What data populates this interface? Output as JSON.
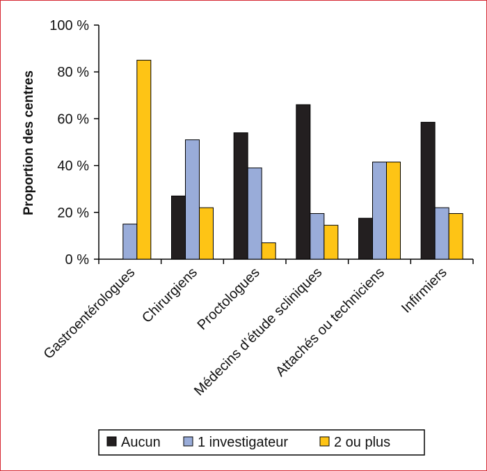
{
  "chart_data": {
    "type": "bar",
    "title": "",
    "xlabel": "",
    "ylabel": "Proportion des centres",
    "ylim": [
      0,
      100
    ],
    "yticks": [
      0,
      20,
      40,
      60,
      80,
      100
    ],
    "ytick_labels": [
      "0 %",
      "20 %",
      "40 %",
      "60 %",
      "80 %",
      "100 %"
    ],
    "categories": [
      "Gastroentérologues",
      "Chirurgiens",
      "Proctologues",
      "Médecins d’étude scliniques",
      "Attachés ou techniciens",
      "Infirmiers"
    ],
    "series": [
      {
        "name": "Aucun",
        "color": "#231f20",
        "values": [
          0,
          27,
          54,
          66,
          17.5,
          58.5
        ]
      },
      {
        "name": "1 investigateur",
        "color": "#99acd9",
        "values": [
          15,
          51,
          39,
          19.5,
          41.5,
          22
        ]
      },
      {
        "name": "2 ou plus",
        "color": "#fec415",
        "values": [
          85,
          22,
          7,
          14.5,
          41.5,
          19.5
        ]
      }
    ],
    "grid": false,
    "legend_position": "bottom"
  }
}
